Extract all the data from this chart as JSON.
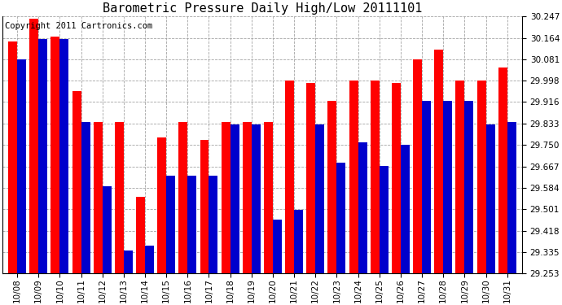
{
  "title": "Barometric Pressure Daily High/Low 20111101",
  "copyright": "Copyright 2011 Cartronics.com",
  "dates": [
    "10/08",
    "10/09",
    "10/10",
    "10/11",
    "10/12",
    "10/13",
    "10/14",
    "10/15",
    "10/16",
    "10/17",
    "10/18",
    "10/19",
    "10/20",
    "10/21",
    "10/22",
    "10/23",
    "10/24",
    "10/25",
    "10/26",
    "10/27",
    "10/28",
    "10/29",
    "10/30",
    "10/31"
  ],
  "highs": [
    30.15,
    30.24,
    30.17,
    29.96,
    29.84,
    29.84,
    29.55,
    29.78,
    29.84,
    29.77,
    29.84,
    29.84,
    29.84,
    30.0,
    29.99,
    29.92,
    30.0,
    30.0,
    29.99,
    30.08,
    30.12,
    30.0,
    30.0,
    30.05
  ],
  "lows": [
    30.08,
    30.16,
    30.16,
    29.84,
    29.59,
    29.34,
    29.36,
    29.63,
    29.63,
    29.63,
    29.83,
    29.83,
    29.46,
    29.5,
    29.83,
    29.68,
    29.76,
    29.67,
    29.75,
    29.92,
    29.92,
    29.92,
    29.83,
    29.84
  ],
  "ylim": [
    29.253,
    30.247
  ],
  "yticks": [
    29.253,
    29.335,
    29.418,
    29.501,
    29.584,
    29.667,
    29.75,
    29.833,
    29.916,
    29.998,
    30.081,
    30.164,
    30.247
  ],
  "high_color": "#ff0000",
  "low_color": "#0000cc",
  "bg_color": "#ffffff",
  "grid_color": "#999999",
  "title_fontsize": 11,
  "copyright_fontsize": 7.5
}
